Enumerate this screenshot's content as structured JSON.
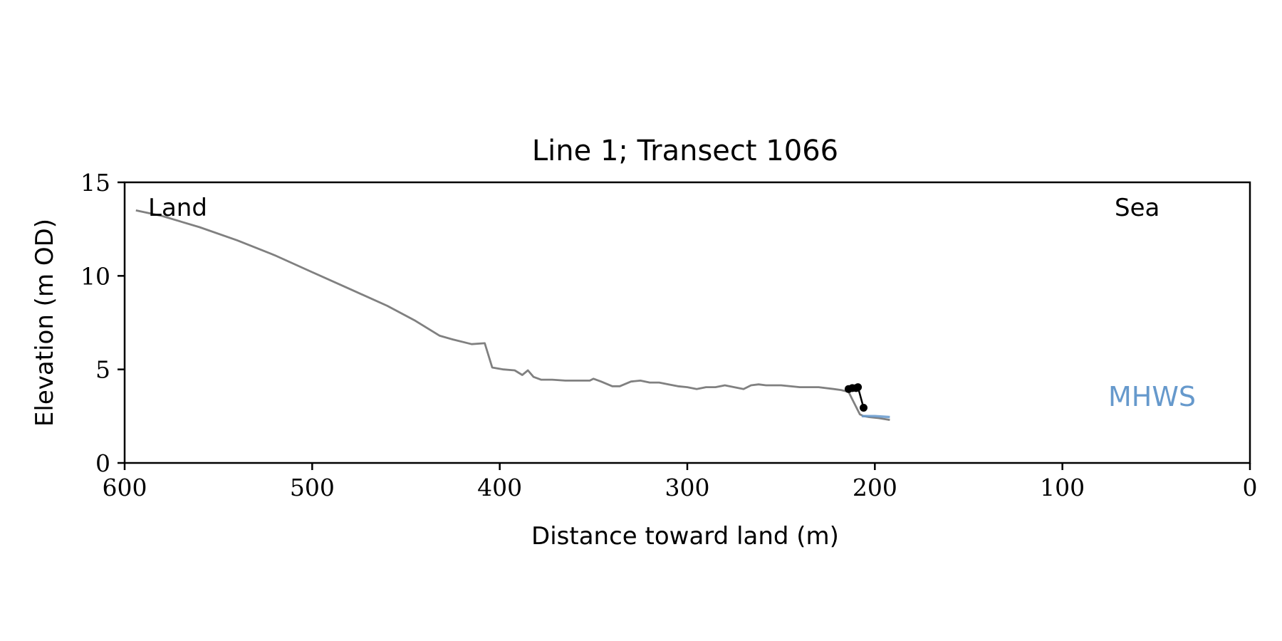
{
  "chart_data": {
    "type": "line",
    "title": "Line 1; Transect 1066",
    "xlabel": "Distance toward land (m)",
    "ylabel": "Elevation (m OD)",
    "xlim": [
      600,
      0
    ],
    "ylim": [
      0,
      15
    ],
    "x_ticks": [
      600,
      500,
      400,
      300,
      200,
      100,
      0
    ],
    "y_ticks": [
      0,
      5,
      10,
      15
    ],
    "grid": false,
    "annotations": {
      "land": "Land",
      "sea": "Sea",
      "mhws": "MHWS"
    },
    "colors": {
      "profile": "#808080",
      "mhws": "#6699cc",
      "markers": "#000000",
      "axis": "#000000"
    },
    "series": [
      {
        "x": [
          594,
          580,
          560,
          540,
          520,
          500,
          480,
          460,
          445,
          432,
          425,
          415,
          408,
          404,
          398,
          392,
          388,
          385,
          382,
          378,
          372,
          365,
          360,
          352,
          350,
          346,
          340,
          336,
          330,
          325,
          320,
          315,
          310,
          305,
          300,
          295,
          290,
          285,
          280,
          275,
          270,
          266,
          262,
          258,
          250,
          240,
          230,
          222,
          218,
          214,
          212,
          210,
          208,
          206,
          203,
          198,
          192
        ],
        "y": [
          13.5,
          13.2,
          12.6,
          11.9,
          11.1,
          10.2,
          9.3,
          8.4,
          7.6,
          6.8,
          6.6,
          6.35,
          6.4,
          5.1,
          5.0,
          4.95,
          4.7,
          4.95,
          4.6,
          4.45,
          4.45,
          4.4,
          4.4,
          4.4,
          4.5,
          4.35,
          4.1,
          4.1,
          4.35,
          4.4,
          4.3,
          4.3,
          4.2,
          4.1,
          4.05,
          3.95,
          4.05,
          4.05,
          4.15,
          4.05,
          3.95,
          4.15,
          4.2,
          4.15,
          4.15,
          4.05,
          4.05,
          3.95,
          3.9,
          3.8,
          3.4,
          3.0,
          2.6,
          2.5,
          2.45,
          2.4,
          2.3
        ]
      },
      {
        "x": [
          207,
          200,
          192
        ],
        "y": [
          2.5,
          2.5,
          2.45
        ]
      },
      {
        "x": [
          214,
          212,
          210,
          209,
          206
        ],
        "y": [
          3.95,
          4.0,
          4.0,
          4.05,
          2.95
        ]
      }
    ]
  }
}
